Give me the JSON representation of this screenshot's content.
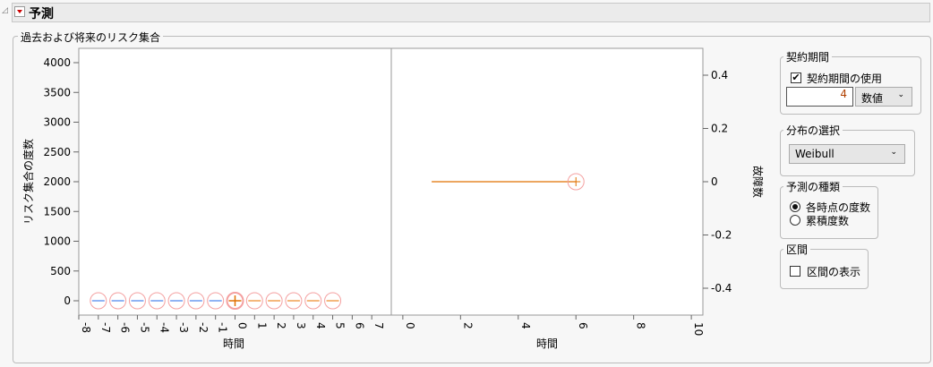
{
  "header": {
    "title": "予測"
  },
  "outline": {
    "title": "過去および将来のリスク集合"
  },
  "chart_data": [
    {
      "type": "scatter",
      "ylabel": "リスク集合の度数",
      "xlabel": "時間",
      "xlim": [
        -8,
        8
      ],
      "ylim": [
        -200,
        4200
      ],
      "xticks": [
        -8,
        -7,
        -6,
        -5,
        -4,
        -3,
        -2,
        -1,
        0,
        1,
        2,
        3,
        4,
        5,
        6,
        7
      ],
      "yticks": [
        0,
        500,
        1000,
        1500,
        2000,
        2500,
        3000,
        3500,
        4000
      ],
      "past": {
        "x": [
          -7,
          -6,
          -5,
          -4,
          -3,
          -2,
          -1
        ],
        "y": [
          0,
          0,
          0,
          0,
          0,
          0,
          0
        ],
        "color": "#6b9bf0"
      },
      "current": {
        "x": [
          0
        ],
        "y": [
          0
        ],
        "color": "#e07000"
      },
      "future": {
        "x": [
          1,
          2,
          3,
          4,
          5
        ],
        "y": [
          0,
          0,
          0,
          0,
          0
        ],
        "color": "#f0a050"
      }
    },
    {
      "type": "line",
      "ylabel": "故障数",
      "xlabel": "時間",
      "xlim": [
        -0.4,
        10.4
      ],
      "ylim": [
        -0.5,
        0.5
      ],
      "xticks": [
        0,
        2,
        4,
        6,
        8,
        10
      ],
      "yticks": [
        0.4,
        0.2,
        0,
        -0.2,
        -0.4
      ],
      "yticklabels": [
        "0.4",
        "0.2",
        "0",
        "-0.2",
        "-0.4"
      ],
      "line": {
        "x": [
          1,
          6
        ],
        "y": [
          0,
          0
        ],
        "color": "#e07000"
      },
      "marker": {
        "x": 6,
        "y": 0
      }
    }
  ],
  "controls": {
    "contract": {
      "title": "契約期間",
      "use_label": "契約期間の使用",
      "use_checked": true,
      "value": "4",
      "unit": "数値"
    },
    "dist": {
      "title": "分布の選択",
      "value": "Weibull"
    },
    "kind": {
      "title": "予測の種類",
      "options": [
        "各時点の度数",
        "累積度数"
      ],
      "selected": 0
    },
    "interval": {
      "title": "区間",
      "show_label": "区間の表示",
      "checked": false
    }
  }
}
